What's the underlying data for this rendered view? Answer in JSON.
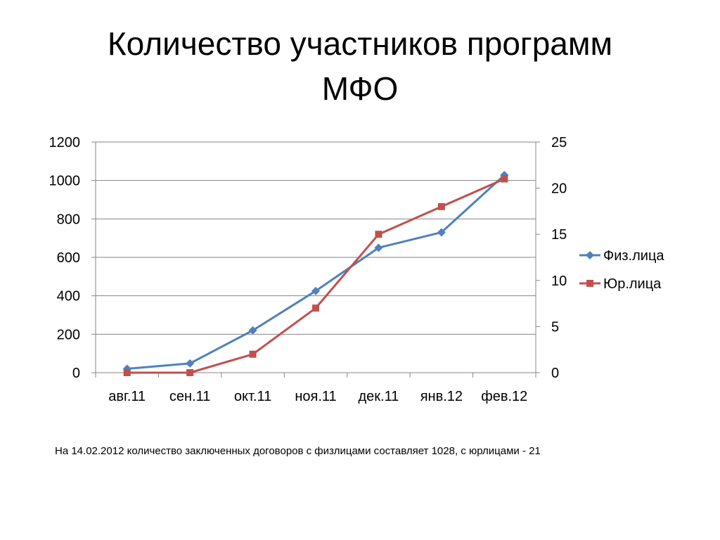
{
  "slide": {
    "title_line1": "Количество участников программ",
    "title_line2": "МФО",
    "footnote": "На 14.02.2012 количество  заключенных договоров с физлицами составляет 1028, с юрлицами - 21"
  },
  "chart_data": {
    "type": "line",
    "categories": [
      "авг.11",
      "сен.11",
      "окт.11",
      "ноя.11",
      "дек.11",
      "янв.12",
      "фев.12"
    ],
    "series": [
      {
        "name": "Физ.лица",
        "axis": "left",
        "color": "#4F81BD",
        "marker": "diamond",
        "values": [
          20,
          48,
          220,
          425,
          650,
          730,
          1028
        ]
      },
      {
        "name": "Юр.лица",
        "axis": "right",
        "color": "#C0504D",
        "marker": "square",
        "values": [
          0,
          0,
          2,
          7,
          15,
          18,
          21
        ]
      }
    ],
    "y_left": {
      "min": 0,
      "max": 1200,
      "ticks": [
        "0",
        "200",
        "400",
        "600",
        "800",
        "1000",
        "1200"
      ]
    },
    "y_right": {
      "min": 0,
      "max": 25,
      "ticks": [
        "0",
        "5",
        "10",
        "15",
        "20",
        "25"
      ]
    },
    "grid": true,
    "legend": "right",
    "title": "",
    "xlabel": "",
    "ylabel": ""
  }
}
